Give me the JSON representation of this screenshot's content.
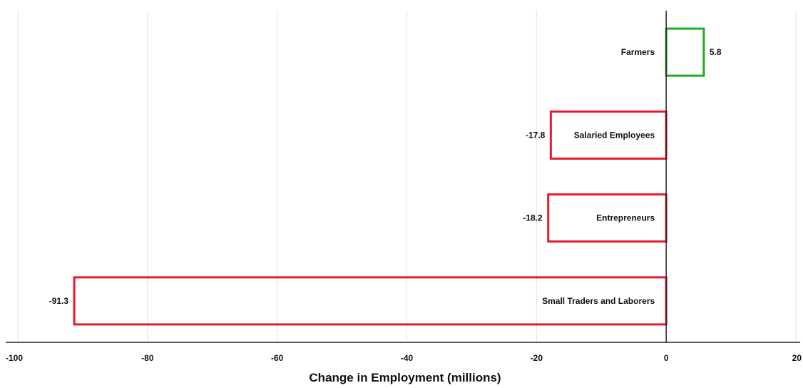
{
  "chart_data": {
    "type": "bar",
    "orientation": "horizontal",
    "categories": [
      "Farmers",
      "Salaried Employees",
      "Entrepreneurs",
      "Small Traders and Laborers"
    ],
    "values": [
      5.8,
      -17.8,
      -18.2,
      -91.3
    ],
    "value_labels": [
      "5.8",
      "-17.8",
      "-18.2",
      "-91.3"
    ],
    "xlabel": "Change in Employment (millions)",
    "ylabel": "",
    "xlim": [
      -100,
      20
    ],
    "xticks": [
      -100,
      -80,
      -60,
      -40,
      -20,
      0,
      20
    ],
    "xtick_labels": [
      "-100",
      "-80",
      "-60",
      "-40",
      "-20",
      "0",
      "20"
    ],
    "grid": "vertical",
    "bar_style": "outline",
    "colors": {
      "positive": "#22aa22",
      "negative": "#e8192c",
      "grid": "#e4e4e4",
      "axis": "#222222"
    }
  }
}
